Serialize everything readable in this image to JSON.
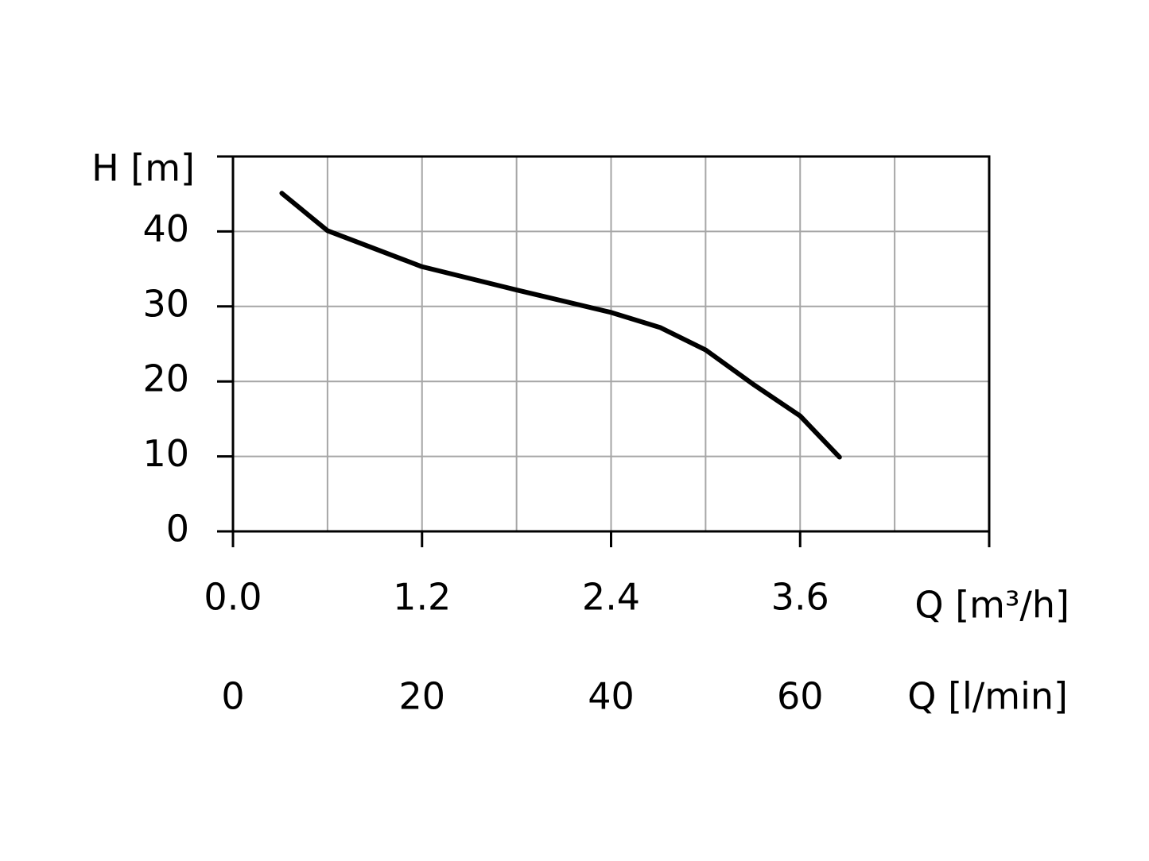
{
  "chart_data": {
    "type": "line",
    "y_label": "H [m]",
    "x_label": "Q [m³/h]",
    "x2_label": "Q [l/min]",
    "xlim": [
      0,
      4.8
    ],
    "xticks": [
      {
        "value": 0,
        "label": "0.0"
      },
      1.2,
      2.4,
      3.6
    ],
    "x2lim": [
      0,
      80
    ],
    "x2ticks": [
      0,
      20,
      40,
      60
    ],
    "ylim": [
      0,
      50
    ],
    "yticks": [
      0,
      10,
      20,
      30,
      40
    ],
    "grid": true,
    "grid_x_step": 0.6,
    "grid_y_step": 10,
    "series": [
      {
        "color": "#000000",
        "x": [
          0.31,
          0.6,
          1.2,
          1.8,
          2.4,
          2.71,
          3.0,
          3.31,
          3.6,
          3.85
        ],
        "values": [
          45.1,
          40.1,
          35.3,
          32.2,
          29.2,
          27.2,
          24.2,
          19.5,
          15.4,
          9.9
        ]
      }
    ]
  }
}
